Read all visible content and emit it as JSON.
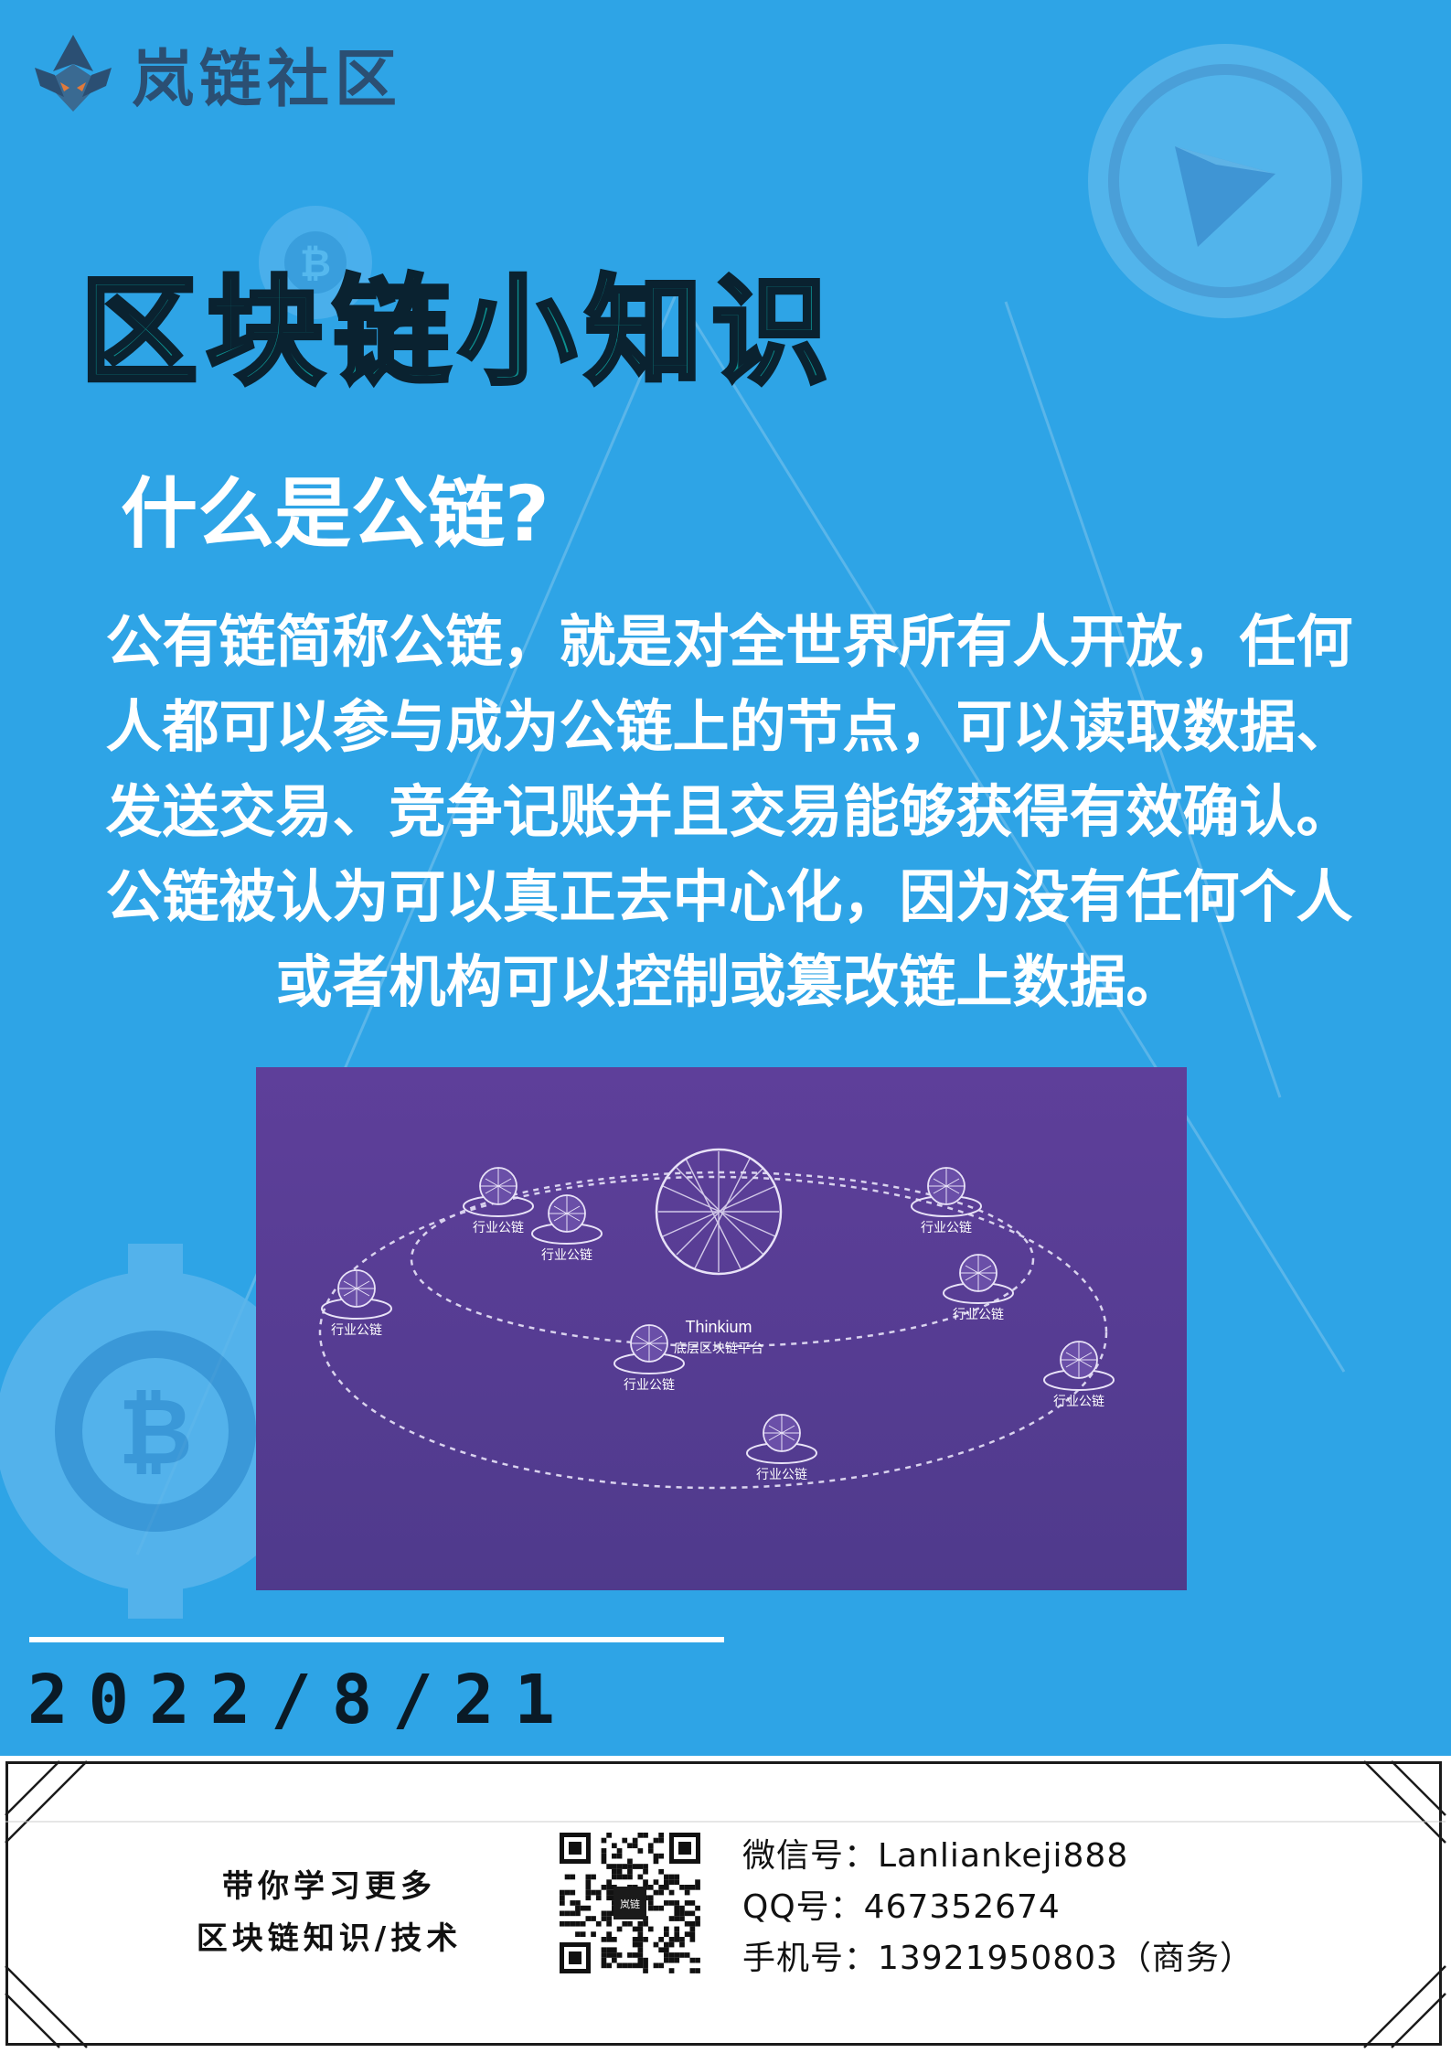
{
  "brand": {
    "name": "岚链社区"
  },
  "header": {
    "title": "区块链小知识"
  },
  "article": {
    "question": "什么是公链?",
    "lines": [
      "公有链简称公链，就是对全世界所有人开放，任何",
      "人都可以参与成为公链上的节点，可以读取数据、",
      "发送交易、竞争记账并且交易能够获得有效确认。",
      "公链被认为可以真正去中心化，因为没有任何个人",
      "或者机构可以控制或篡改链上数据。"
    ]
  },
  "diagram": {
    "center_label_en": "Thinkium",
    "center_label_cn": "底层区块链平台",
    "node_label": "行业公链"
  },
  "date": "2022/8/21",
  "footer": {
    "tagline_1": "带你学习更多",
    "tagline_2": "区块链知识/技术",
    "qr_center": "岚链",
    "wechat": "微信号：Lanliankeji888",
    "qq": "QQ号：467352674",
    "phone": "手机号：13921950803（商务）"
  },
  "colors": {
    "background": "#2ea4e6",
    "title_fill": "#0d8f8f",
    "diagram_bg": "#5b3e96"
  },
  "icons": [
    "logo-emblem-icon",
    "ethereum-coin-icon",
    "bitcoin-gear-icon"
  ]
}
